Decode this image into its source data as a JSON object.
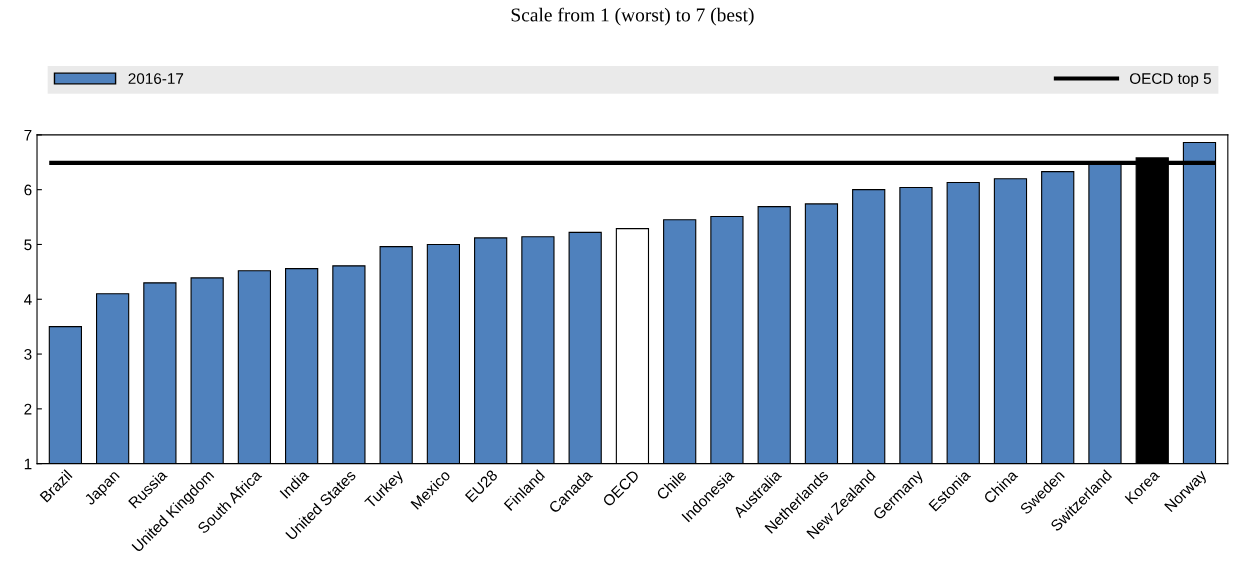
{
  "chart_data": {
    "type": "bar",
    "title": "Scale from 1 (worst) to 7 (best)",
    "categories": [
      "Brazil",
      "Japan",
      "Russia",
      "United Kingdom",
      "South Africa",
      "India",
      "United States",
      "Turkey",
      "Mexico",
      "EU28",
      "Finland",
      "Canada",
      "OECD",
      "Chile",
      "Indonesia",
      "Australia",
      "Netherlands",
      "New Zealand",
      "Germany",
      "Estonia",
      "China",
      "Sweden",
      "Switzerland",
      "Korea",
      "Norway"
    ],
    "series": [
      {
        "name": "2016-17",
        "color": "#4f81bd",
        "colors": [
          "#4f81bd",
          "#4f81bd",
          "#4f81bd",
          "#4f81bd",
          "#4f81bd",
          "#4f81bd",
          "#4f81bd",
          "#4f81bd",
          "#4f81bd",
          "#4f81bd",
          "#4f81bd",
          "#4f81bd",
          "#ffffff",
          "#4f81bd",
          "#4f81bd",
          "#4f81bd",
          "#4f81bd",
          "#4f81bd",
          "#4f81bd",
          "#4f81bd",
          "#4f81bd",
          "#4f81bd",
          "#4f81bd",
          "#000000",
          "#4f81bd"
        ],
        "values": [
          3.5,
          4.1,
          4.3,
          4.39,
          4.52,
          4.56,
          4.61,
          4.96,
          5.0,
          5.12,
          5.14,
          5.22,
          5.29,
          5.45,
          5.51,
          5.69,
          5.74,
          6.0,
          6.04,
          6.13,
          6.2,
          6.33,
          6.47,
          6.58,
          6.86
        ]
      }
    ],
    "ref_lines": [
      {
        "axis": "y",
        "value": 6.49,
        "label": "OECD top 5",
        "color": "#000000",
        "line_style": "solid"
      }
    ],
    "ylim": [
      1,
      7
    ],
    "yticks": [
      1,
      2,
      3,
      4,
      5,
      6,
      7
    ],
    "grid": false,
    "legend": "top"
  }
}
